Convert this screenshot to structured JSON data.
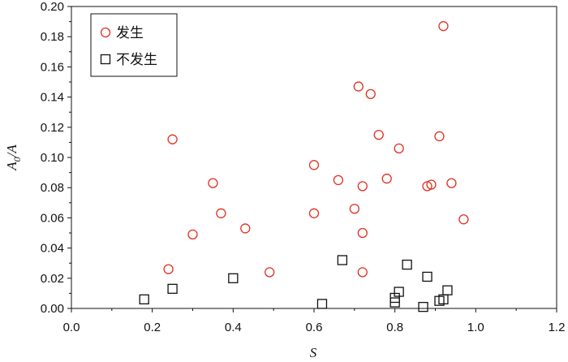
{
  "chart_data": {
    "type": "scatter",
    "title": "",
    "xlabel": "S",
    "ylabel_main": "A",
    "ylabel_sub": "0",
    "ylabel_tail": "/A",
    "xlim": [
      0.0,
      1.2
    ],
    "ylim": [
      0.0,
      0.2
    ],
    "x_ticks": [
      "0.0",
      "0.2",
      "0.4",
      "0.6",
      "0.8",
      "1.0",
      "1.2"
    ],
    "x_tick_values": [
      0.0,
      0.2,
      0.4,
      0.6,
      0.8,
      1.0,
      1.2
    ],
    "y_ticks": [
      "0.00",
      "0.02",
      "0.04",
      "0.06",
      "0.08",
      "0.10",
      "0.12",
      "0.14",
      "0.16",
      "0.18",
      "0.20"
    ],
    "y_tick_values": [
      0.0,
      0.02,
      0.04,
      0.06,
      0.08,
      0.1,
      0.12,
      0.14,
      0.16,
      0.18,
      0.2
    ],
    "grid": false,
    "legend_position": "top-left",
    "series": [
      {
        "name": "发生",
        "marker": "circle",
        "color": "#e03020",
        "points": [
          [
            0.24,
            0.026
          ],
          [
            0.25,
            0.112
          ],
          [
            0.3,
            0.049
          ],
          [
            0.35,
            0.083
          ],
          [
            0.37,
            0.063
          ],
          [
            0.43,
            0.053
          ],
          [
            0.49,
            0.024
          ],
          [
            0.6,
            0.095
          ],
          [
            0.6,
            0.063
          ],
          [
            0.66,
            0.085
          ],
          [
            0.7,
            0.066
          ],
          [
            0.71,
            0.147
          ],
          [
            0.72,
            0.081
          ],
          [
            0.72,
            0.05
          ],
          [
            0.72,
            0.024
          ],
          [
            0.74,
            0.142
          ],
          [
            0.76,
            0.115
          ],
          [
            0.78,
            0.086
          ],
          [
            0.81,
            0.106
          ],
          [
            0.88,
            0.081
          ],
          [
            0.89,
            0.082
          ],
          [
            0.91,
            0.114
          ],
          [
            0.92,
            0.187
          ],
          [
            0.94,
            0.083
          ],
          [
            0.97,
            0.059
          ]
        ]
      },
      {
        "name": "不发生",
        "marker": "square",
        "color": "#111111",
        "points": [
          [
            0.18,
            0.006
          ],
          [
            0.25,
            0.013
          ],
          [
            0.4,
            0.02
          ],
          [
            0.62,
            0.003
          ],
          [
            0.67,
            0.032
          ],
          [
            0.8,
            0.004
          ],
          [
            0.8,
            0.007
          ],
          [
            0.81,
            0.011
          ],
          [
            0.83,
            0.029
          ],
          [
            0.87,
            0.001
          ],
          [
            0.88,
            0.021
          ],
          [
            0.91,
            0.005
          ],
          [
            0.92,
            0.006
          ],
          [
            0.93,
            0.012
          ]
        ]
      }
    ]
  }
}
